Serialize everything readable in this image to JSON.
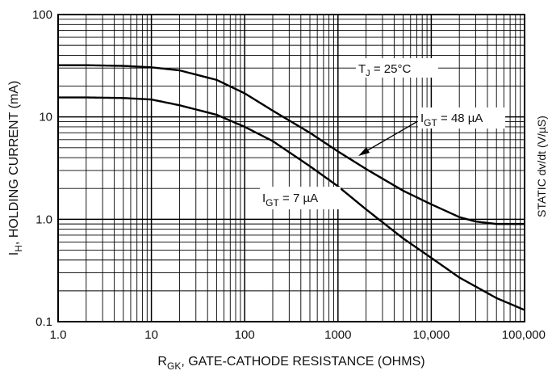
{
  "chart_data": {
    "type": "line",
    "x_scale": "log",
    "y_scale": "log",
    "xlim": [
      1,
      100000
    ],
    "ylim": [
      0.1,
      100
    ],
    "grid": true,
    "x_ticks": [
      "1.0",
      "10",
      "100",
      "1000",
      "10,000",
      "100,000"
    ],
    "y_ticks": [
      "0.1",
      "1.0",
      "10",
      "100"
    ],
    "xlabel": {
      "main": "R",
      "sub": "GK",
      "rest": ", GATE-CATHODE RESISTANCE (OHMS)"
    },
    "ylabel": {
      "main": "I",
      "sub": "H",
      "rest": ", HOLDING CURRENT (mA)"
    },
    "ylabel_right": "STATIC dv/dt (V/µS)",
    "annotations": {
      "tj": {
        "main": "T",
        "sub": "J",
        "rest": " = 25°C"
      },
      "igt48": {
        "main": "I",
        "sub": "GT",
        "rest": " = 48 µA"
      },
      "igt7": {
        "main": "I",
        "sub": "GT",
        "rest": " = 7 µA"
      }
    },
    "series": [
      {
        "name": "I_GT = 48 µA",
        "x": [
          1,
          2,
          5,
          10,
          20,
          50,
          100,
          200,
          500,
          1000,
          2000,
          5000,
          10000,
          20000,
          30000,
          50000,
          100000
        ],
        "y": [
          32,
          32,
          31.5,
          30.5,
          28.5,
          23,
          17,
          11.5,
          7,
          4.6,
          3.1,
          1.9,
          1.4,
          1.05,
          0.95,
          0.9,
          0.9
        ]
      },
      {
        "name": "I_GT = 7 µA",
        "x": [
          1,
          2,
          5,
          10,
          20,
          50,
          100,
          200,
          500,
          1000,
          2000,
          5000,
          10000,
          20000,
          50000,
          100000
        ],
        "y": [
          15.5,
          15.5,
          15.3,
          14.8,
          13,
          10.5,
          8,
          5.8,
          3.3,
          2.1,
          1.25,
          0.65,
          0.42,
          0.27,
          0.17,
          0.13
        ]
      }
    ]
  }
}
